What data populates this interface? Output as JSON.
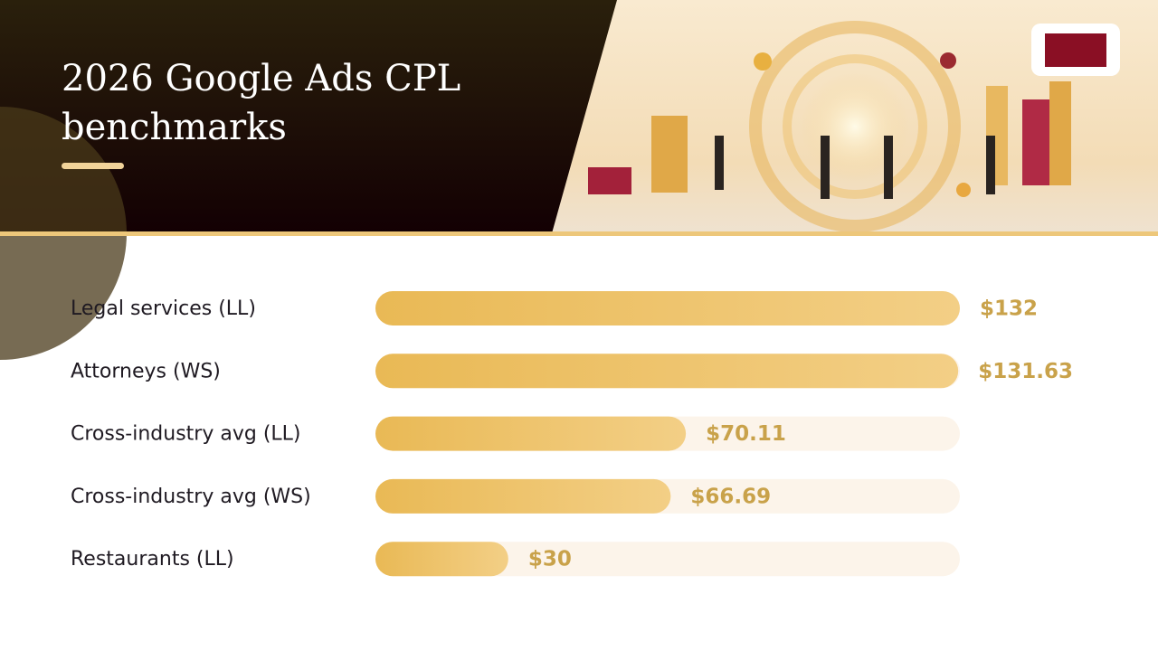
{
  "chart_data": {
    "type": "bar",
    "orientation": "horizontal",
    "title": "2026 Google Ads CPL benchmarks",
    "categories": [
      "Legal services (LL)",
      "Attorneys (WS)",
      "Cross-industry avg (LL)",
      "Cross-industry avg (WS)",
      "Restaurants (LL)"
    ],
    "values": [
      132,
      131.63,
      70.11,
      66.69,
      30
    ],
    "value_labels": [
      "$132",
      "$131.63",
      "$70.11",
      "$66.69",
      "$30"
    ],
    "color": "#ebbd5e"
  }
}
